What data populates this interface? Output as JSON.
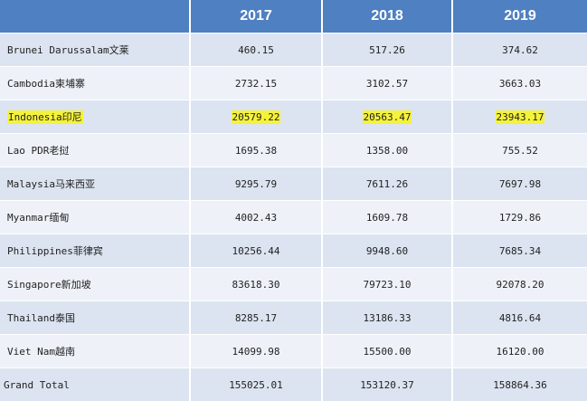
{
  "header": {
    "country_col": "",
    "years": [
      "2017",
      "2018",
      "2019"
    ]
  },
  "rows": [
    {
      "country": "Brunei Darussalam文莱",
      "values": [
        "460.15",
        "517.26",
        "374.62"
      ],
      "highlight": false
    },
    {
      "country": "Cambodia柬埔寨",
      "values": [
        "2732.15",
        "3102.57",
        "3663.03"
      ],
      "highlight": false
    },
    {
      "country": "Indonesia印尼",
      "values": [
        "20579.22",
        "20563.47",
        "23943.17"
      ],
      "highlight": true
    },
    {
      "country": "Lao PDR老挝",
      "values": [
        "1695.38",
        "1358.00",
        "755.52"
      ],
      "highlight": false
    },
    {
      "country": "Malaysia马来西亚",
      "values": [
        "9295.79",
        "7611.26",
        "7697.98"
      ],
      "highlight": false
    },
    {
      "country": "Myanmar缅甸",
      "values": [
        "4002.43",
        "1609.78",
        "1729.86"
      ],
      "highlight": false
    },
    {
      "country": "Philippines菲律宾",
      "values": [
        "10256.44",
        "9948.60",
        "7685.34"
      ],
      "highlight": false
    },
    {
      "country": "Singapore新加坡",
      "values": [
        "83618.30",
        "79723.10",
        "92078.20"
      ],
      "highlight": false
    },
    {
      "country": "Thailand泰国",
      "values": [
        "8285.17",
        "13186.33",
        "4816.64"
      ],
      "highlight": false
    },
    {
      "country": "Viet Nam越南",
      "values": [
        "14099.98",
        "15500.00",
        "16120.00"
      ],
      "highlight": false
    },
    {
      "country": "Grand Total",
      "values": [
        "155025.01",
        "153120.37",
        "158864.36"
      ],
      "highlight": false
    }
  ],
  "colors": {
    "header_bg": "#4f80c1",
    "row_odd": "#dbe4f0",
    "row_even": "#eef2f8",
    "highlight": "#f5f23a"
  }
}
